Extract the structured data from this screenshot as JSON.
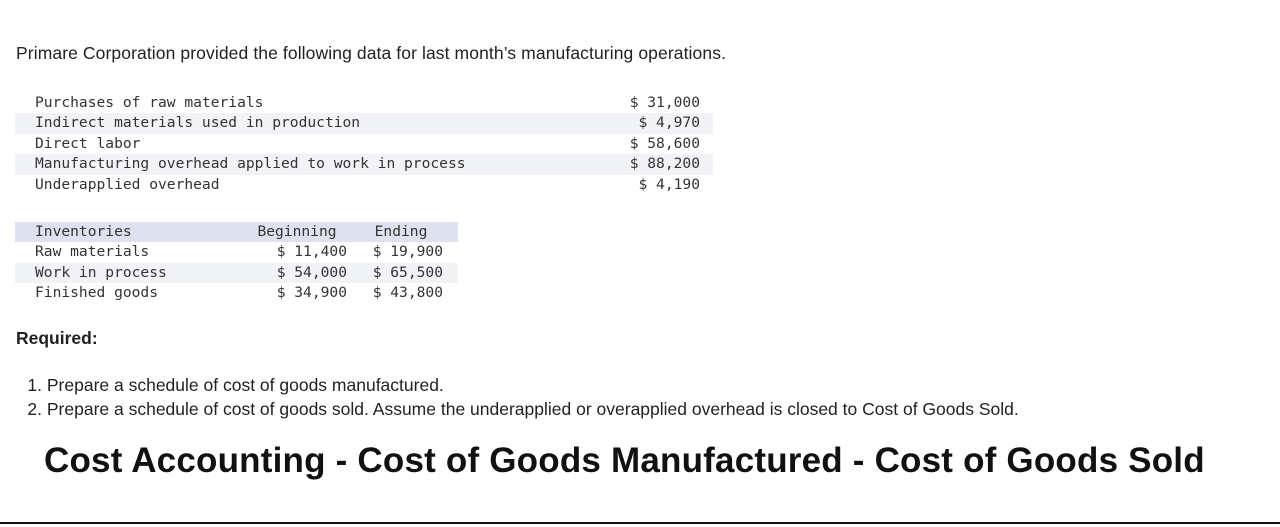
{
  "intro": "Primare Corporation provided the following data for last month’s manufacturing operations.",
  "cost_items": [
    {
      "label": "Purchases of raw materials",
      "value": "$ 31,000"
    },
    {
      "label": "Indirect materials used in production",
      "value": "$ 4,970"
    },
    {
      "label": "Direct labor",
      "value": "$ 58,600"
    },
    {
      "label": "Manufacturing overhead applied to work in process",
      "value": "$ 88,200"
    },
    {
      "label": "Underapplied overhead",
      "value": "$ 4,190"
    }
  ],
  "inventory": {
    "headers": [
      "Inventories",
      "Beginning",
      "Ending"
    ],
    "rows": [
      {
        "label": "Raw materials",
        "beginning": "$ 11,400",
        "ending": "$ 19,900"
      },
      {
        "label": "Work in process",
        "beginning": "$ 54,000",
        "ending": "$ 65,500"
      },
      {
        "label": "Finished goods",
        "beginning": "$ 34,900",
        "ending": "$ 43,800"
      }
    ]
  },
  "required_label": "Required:",
  "tasks": [
    {
      "num": "1.",
      "text": "Prepare a schedule of cost of goods manufactured."
    },
    {
      "num": "2.",
      "text": "Prepare a schedule of cost of goods sold. Assume the underapplied or overapplied overhead is closed to Cost of Goods Sold."
    }
  ],
  "banner": "Cost Accounting - Cost of Goods Manufactured - Cost of Goods Sold"
}
